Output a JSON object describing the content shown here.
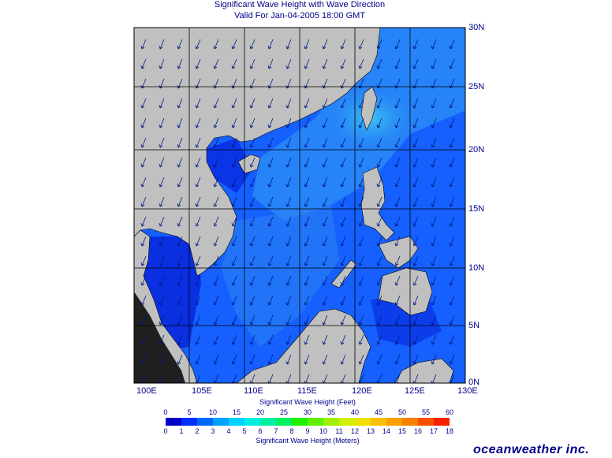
{
  "title": {
    "line1": "Significant Wave Height with Wave Direction",
    "line2": "Valid For Jan-04-2005 18:00 GMT"
  },
  "map": {
    "lon_labels": [
      "100E",
      "105E",
      "110E",
      "115E",
      "120E",
      "125E",
      "130E"
    ],
    "lat_labels": [
      "30N",
      "25N",
      "20N",
      "15N",
      "10N",
      "5N",
      "0N"
    ],
    "lon_range": [
      100,
      130
    ],
    "lat_range": [
      0,
      30
    ],
    "land_color": "#c0c0c0",
    "dominant_wave_direction": "from the northeast",
    "colors": {
      "calm": "#0a2fe0",
      "sea": "#1560ff",
      "moderate": "#2a8cf6",
      "higher": "#3cc0ef"
    }
  },
  "colorbar": {
    "feet_title": "Significant Wave Height (Feet)",
    "meters_title": "Significant Wave Height (Meters)",
    "feet_ticks": [
      "0",
      "5",
      "10",
      "15",
      "20",
      "25",
      "30",
      "35",
      "40",
      "45",
      "50",
      "55",
      "60"
    ],
    "meter_ticks": [
      "0",
      "1",
      "2",
      "3",
      "4",
      "5",
      "6",
      "7",
      "8",
      "9",
      "10",
      "11",
      "12",
      "13",
      "14",
      "15",
      "16",
      "17",
      "18"
    ],
    "colors": [
      "#0000c8",
      "#0030ff",
      "#0068ff",
      "#00a0ff",
      "#00d0ff",
      "#00f0e0",
      "#00f0a0",
      "#00f060",
      "#20f000",
      "#60f000",
      "#a0f000",
      "#d0f000",
      "#f0e000",
      "#f8c000",
      "#f8a000",
      "#f88000",
      "#f85000",
      "#f82000"
    ]
  },
  "brand": {
    "logo_text": "oceanweather inc."
  }
}
